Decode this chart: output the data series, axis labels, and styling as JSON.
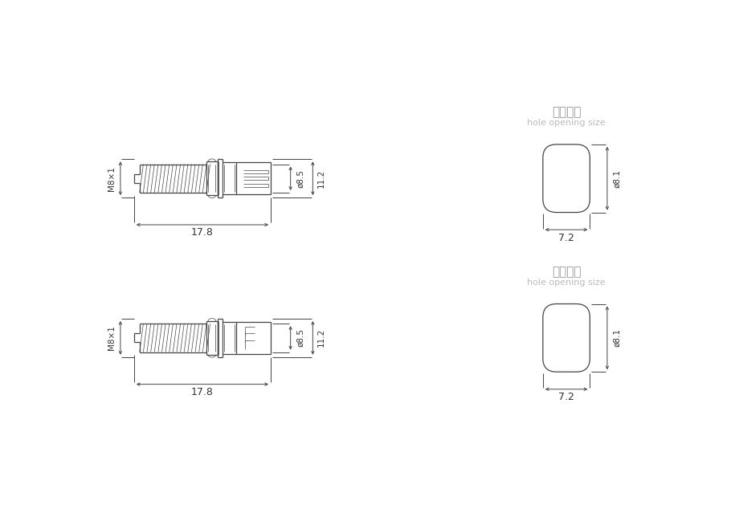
{
  "bg_color": "#ffffff",
  "line_color": "#444444",
  "dim_color": "#444444",
  "text_color": "#333333",
  "gray_text": "#999999",
  "light_gray": "#bbbbbb",
  "chinese_label": "开孔尺寸",
  "english_label": "hole opening size",
  "dim_178": "17.8",
  "dim_85": "ø8.5",
  "dim_112": "11.2",
  "dim_m8x1": "M8×1",
  "dim_81": "ø8.1",
  "dim_72": "7.2"
}
